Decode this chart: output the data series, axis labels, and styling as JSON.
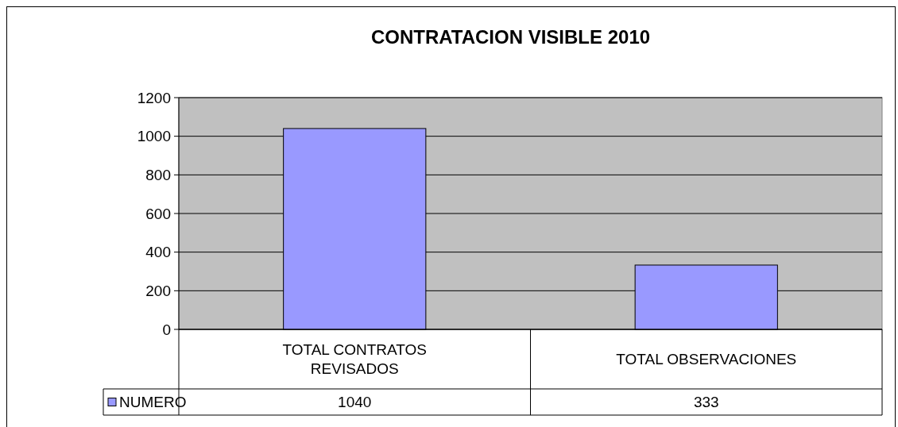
{
  "chart_data": {
    "type": "bar",
    "title": "CONTRATACION VISIBLE 2010",
    "categories": [
      "TOTAL CONTRATOS REVISADOS",
      "TOTAL OBSERVACIONES"
    ],
    "series": [
      {
        "name": "NUMERO",
        "color": "#9999ff",
        "values": [
          1040,
          333
        ]
      }
    ],
    "ylim": [
      0,
      1200
    ],
    "yticks": [
      0,
      200,
      400,
      600,
      800,
      1000,
      1200
    ],
    "grid": "y",
    "legend": "bottom left",
    "data_labels": true
  }
}
